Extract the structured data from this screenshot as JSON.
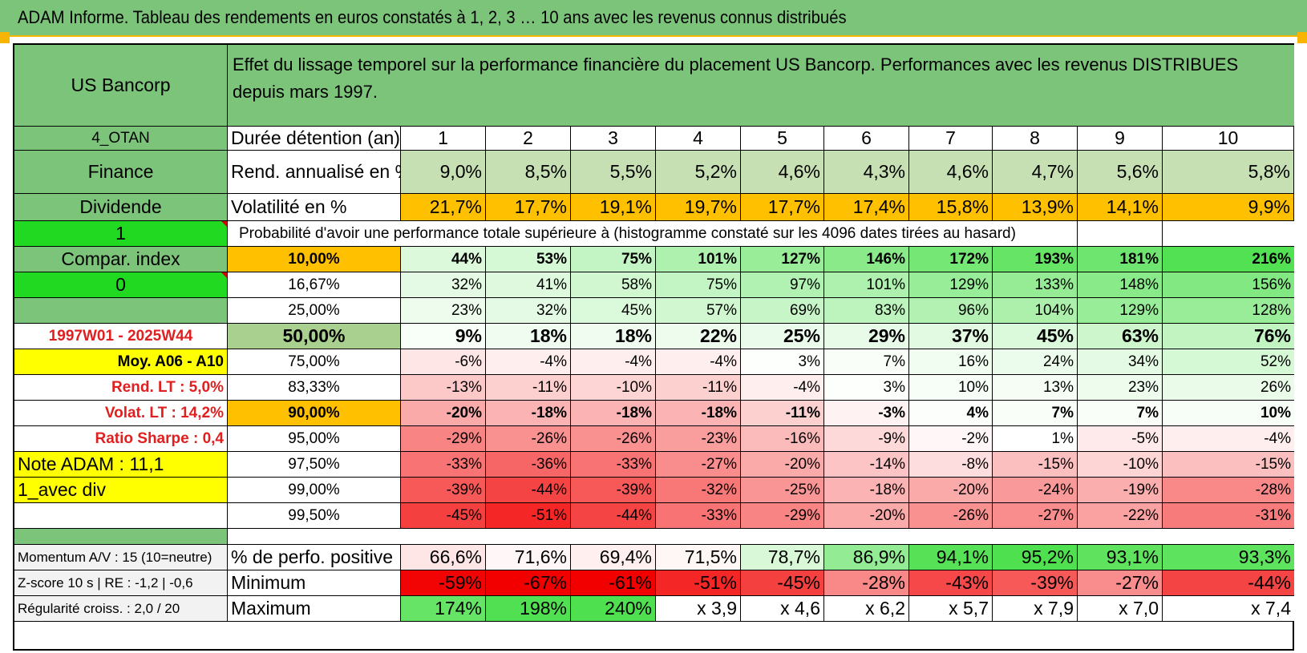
{
  "title": "ADAM Informe. Tableau des rendements en euros constatés à 1, 2, 3 … 10 ans avec les revenus connus distribués",
  "header": {
    "name": "US Bancorp",
    "description": "Effet du lissage temporel sur la performance financière du placement US Bancorp. Performances avec les revenus DISTRIBUES depuis mars 1997."
  },
  "durations": [
    "1",
    "2",
    "3",
    "4",
    "5",
    "6",
    "7",
    "8",
    "9",
    "10"
  ],
  "left_col": {
    "otan": "4_OTAN",
    "sector": "Finance",
    "type": "Dividende",
    "flag1": "1",
    "compar": "Compar. index",
    "flag0": "0",
    "period": "1997W01 - 2025W44",
    "moy": "Moy. A06 - A10",
    "rend_lt": "Rend. LT :   5,0%",
    "volat_lt": "Volat. LT :   14,2%",
    "sharpe": "Ratio Sharpe :    0,4",
    "note": "Note ADAM : 11,1",
    "avec_div": "1_avec div"
  },
  "row_labels": {
    "duration": "Durée détention (an)",
    "rend": "Rend. annualisé en %",
    "vol": "Volatilité en %",
    "prob": "Probabilité d'avoir une performance totale supérieure à (histogramme constaté sur les 4096 dates tirées au hasard)"
  },
  "rend_values": [
    "9,0%",
    "8,5%",
    "5,5%",
    "5,2%",
    "4,6%",
    "4,3%",
    "4,6%",
    "4,7%",
    "5,6%",
    "5,8%"
  ],
  "vol_values": [
    "21,7%",
    "17,7%",
    "19,1%",
    "19,7%",
    "17,7%",
    "17,4%",
    "15,8%",
    "13,9%",
    "14,1%",
    "9,9%"
  ],
  "percentile_rows": [
    {
      "p": "10,00%",
      "bold": true,
      "values": [
        "44%",
        "53%",
        "75%",
        "101%",
        "127%",
        "146%",
        "172%",
        "193%",
        "181%",
        "216%"
      ]
    },
    {
      "p": "16,67%",
      "bold": false,
      "values": [
        "32%",
        "41%",
        "58%",
        "75%",
        "97%",
        "101%",
        "129%",
        "133%",
        "148%",
        "156%"
      ]
    },
    {
      "p": "25,00%",
      "bold": false,
      "values": [
        "23%",
        "32%",
        "45%",
        "57%",
        "69%",
        "83%",
        "96%",
        "104%",
        "129%",
        "128%"
      ]
    },
    {
      "p": "50,00%",
      "bold": true,
      "values": [
        "9%",
        "18%",
        "18%",
        "22%",
        "25%",
        "29%",
        "37%",
        "45%",
        "63%",
        "76%"
      ]
    },
    {
      "p": "75,00%",
      "bold": false,
      "values": [
        "-6%",
        "-4%",
        "-4%",
        "-4%",
        "3%",
        "7%",
        "16%",
        "24%",
        "34%",
        "52%"
      ]
    },
    {
      "p": "83,33%",
      "bold": false,
      "values": [
        "-13%",
        "-11%",
        "-10%",
        "-11%",
        "-4%",
        "3%",
        "10%",
        "13%",
        "23%",
        "26%"
      ]
    },
    {
      "p": "90,00%",
      "bold": true,
      "values": [
        "-20%",
        "-18%",
        "-18%",
        "-18%",
        "-11%",
        "-3%",
        "4%",
        "7%",
        "7%",
        "10%"
      ]
    },
    {
      "p": "95,00%",
      "bold": false,
      "values": [
        "-29%",
        "-26%",
        "-26%",
        "-23%",
        "-16%",
        "-9%",
        "-2%",
        "1%",
        "-5%",
        "-4%"
      ]
    },
    {
      "p": "97,50%",
      "bold": false,
      "values": [
        "-33%",
        "-36%",
        "-33%",
        "-27%",
        "-20%",
        "-14%",
        "-8%",
        "-15%",
        "-10%",
        "-15%"
      ]
    },
    {
      "p": "99,00%",
      "bold": false,
      "values": [
        "-39%",
        "-44%",
        "-39%",
        "-32%",
        "-25%",
        "-18%",
        "-20%",
        "-24%",
        "-19%",
        "-28%"
      ]
    },
    {
      "p": "99,50%",
      "bold": false,
      "values": [
        "-45%",
        "-51%",
        "-44%",
        "-33%",
        "-29%",
        "-20%",
        "-26%",
        "-27%",
        "-22%",
        "-31%"
      ]
    }
  ],
  "bottom": {
    "momentum_label": "Momentum A/V : 15 (10=neutre)",
    "pos_label": "% de perfo. positive",
    "pos_values": [
      "66,6%",
      "71,6%",
      "69,4%",
      "71,5%",
      "78,7%",
      "86,9%",
      "94,1%",
      "95,2%",
      "93,1%",
      "93,3%"
    ],
    "zscore_label": "Z-score 10 s | RE : -1,2 | -0,6",
    "min_label": "Minimum",
    "min_values": [
      "-59%",
      "-67%",
      "-61%",
      "-51%",
      "-45%",
      "-28%",
      "-43%",
      "-39%",
      "-27%",
      "-44%"
    ],
    "regularite_label": "Régularité croiss. : 2,0 / 20",
    "max_label": "Maximum",
    "max_values": [
      "174%",
      "198%",
      "240%",
      "x 3,9",
      "x 4,6",
      "x 6,2",
      "x 5,7",
      "x 7,9",
      "x 7,0",
      "x 7,4"
    ]
  },
  "colors": {
    "header_green": "#7dc47b",
    "bright_green": "#21d921",
    "yellow": "#ffff00",
    "orange": "#ffc000",
    "light_green": "#c6e0b4",
    "mid_green": "#a9d08e",
    "red_text": "#e02020",
    "gray": "#f2f2f2"
  }
}
